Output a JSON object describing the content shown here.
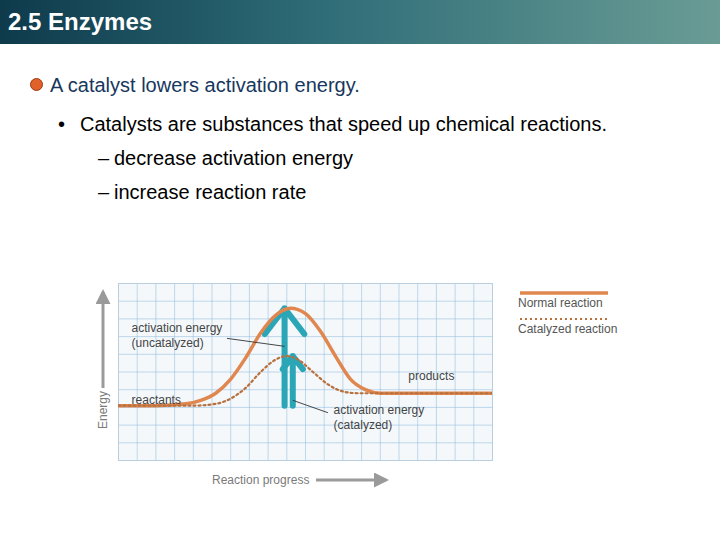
{
  "header": {
    "title": "2.5 Enzymes"
  },
  "heading": "A catalyst lowers activation energy.",
  "bullet": "•",
  "sub_bullet": "–",
  "bullets": [
    {
      "text": "Catalysts are substances that speed up chemical reactions.",
      "subitems": [
        "decrease activation energy",
        "increase reaction rate"
      ]
    }
  ],
  "chart_data": {
    "type": "line",
    "x_label": "Reaction progress",
    "y_label": "Energy",
    "xlim": [
      0,
      100
    ],
    "ylim": [
      0,
      100
    ],
    "grid": true,
    "tick_labels": false,
    "legend": "right",
    "series": [
      {
        "name": "Normal reaction",
        "color": "#e0864f",
        "line_style": "solid",
        "x": [
          0,
          10,
          18,
          22,
          26,
          30,
          34,
          38,
          42,
          46,
          50,
          54,
          58,
          62,
          66,
          70,
          80,
          100
        ],
        "values": [
          31,
          31,
          32,
          34,
          38,
          46,
          58,
          72,
          82,
          86,
          83,
          73,
          59,
          46,
          40,
          38,
          38,
          38
        ]
      },
      {
        "name": "Catalyzed reaction",
        "color": "#b8703c",
        "line_style": "dotted",
        "x": [
          0,
          20,
          26,
          30,
          34,
          38,
          42,
          45,
          48,
          52,
          56,
          60,
          64,
          70,
          100
        ],
        "values": [
          31,
          31,
          32,
          35,
          41,
          50,
          57,
          59,
          57,
          50,
          43,
          39,
          38,
          38,
          38
        ]
      }
    ],
    "annotations": {
      "reactants": "reactants",
      "products": "products",
      "activation_uncatalyzed": [
        "activation energy",
        "(uncatalyzed)"
      ],
      "activation_catalyzed": [
        "activation energy",
        "(catalyzed)"
      ]
    }
  }
}
